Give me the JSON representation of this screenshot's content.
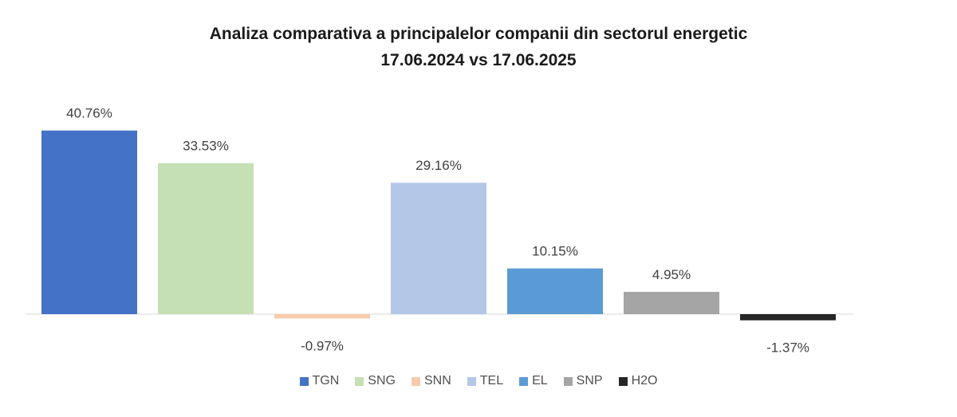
{
  "chart_data": {
    "type": "bar",
    "title": "Analiza comparativa  a principalelor companii din sectorul energetic",
    "subtitle": "17.06.2024 vs 17.06.2025",
    "categories": [
      "TGN",
      "SNG",
      "SNN",
      "TEL",
      "EL",
      "SNP",
      "H2O"
    ],
    "values": [
      40.76,
      33.53,
      -0.97,
      29.16,
      10.15,
      4.95,
      -1.37
    ],
    "data_labels": [
      "40.76%",
      "33.53%",
      "-0.97%",
      "29.16%",
      "10.15%",
      "4.95%",
      "-1.37%"
    ],
    "colors": [
      "#4472c4",
      "#c5e0b4",
      "#f8cbad",
      "#b4c7e7",
      "#5b9bd5",
      "#a5a5a5",
      "#262626"
    ],
    "ylim": [
      -2,
      42
    ],
    "grid": false,
    "legend_position": "bottom",
    "xlabel": "",
    "ylabel": ""
  }
}
